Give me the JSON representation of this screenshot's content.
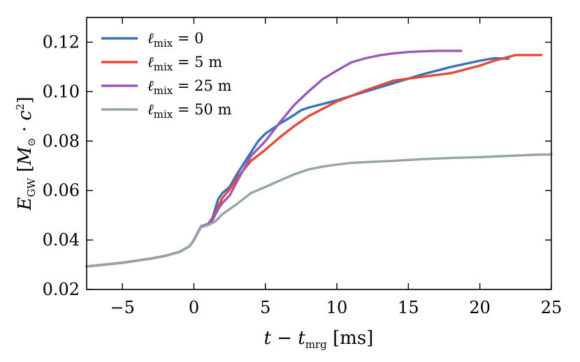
{
  "chart_data": {
    "type": "line",
    "title": "",
    "xlabel": "t − t_mrg [ms]",
    "ylabel": "E_GW [M_⊙ · c²]",
    "xlim": [
      -7.5,
      25
    ],
    "ylim": [
      0.02,
      0.13
    ],
    "xticks": [
      -5,
      0,
      5,
      10,
      15,
      20,
      25
    ],
    "yticks": [
      0.02,
      0.04,
      0.06,
      0.08,
      0.1,
      0.12
    ],
    "xtick_labels": [
      "−5",
      "0",
      "5",
      "10",
      "15",
      "20",
      "25"
    ],
    "ytick_labels": [
      "0.02",
      "0.04",
      "0.06",
      "0.08",
      "0.10",
      "0.12"
    ],
    "grid": false,
    "legend_position": "top-left",
    "series": [
      {
        "name": "ℓmix = 0",
        "legend_symbol": "ℓ",
        "legend_sub": "mix",
        "legend_value": " =   0",
        "color": "#3a72b7",
        "x": [
          -7.5,
          -5,
          -3,
          -2,
          -1,
          -0.3,
          0,
          0.5,
          1,
          1.3,
          1.7,
          2,
          2.5,
          3,
          4,
          4.5,
          5,
          6,
          7,
          7.5,
          8,
          9,
          10,
          12,
          14,
          16,
          18,
          20,
          21,
          22
        ],
        "y": [
          0.0293,
          0.0308,
          0.0325,
          0.0336,
          0.0352,
          0.0375,
          0.04,
          0.0455,
          0.0465,
          0.049,
          0.0565,
          0.059,
          0.0615,
          0.0665,
          0.0755,
          0.08,
          0.083,
          0.087,
          0.0905,
          0.0925,
          0.0935,
          0.095,
          0.0965,
          0.1,
          0.1035,
          0.107,
          0.11,
          0.1125,
          0.1135,
          0.1133
        ]
      },
      {
        "name": "ℓmix = 5 m",
        "legend_symbol": "ℓ",
        "legend_sub": "mix",
        "legend_value": " =   5 m",
        "color": "#e24a3b",
        "x": [
          -7.5,
          -5,
          -3,
          -2,
          -1,
          -0.3,
          0,
          0.5,
          1,
          1.3,
          1.7,
          2,
          2.5,
          3,
          4,
          5,
          6,
          7,
          8,
          10,
          12,
          14,
          16,
          18,
          20,
          21,
          22,
          22.5,
          23,
          24.3
        ],
        "y": [
          0.0293,
          0.0308,
          0.0325,
          0.0336,
          0.0352,
          0.0375,
          0.04,
          0.0455,
          0.0465,
          0.0485,
          0.0535,
          0.057,
          0.0605,
          0.065,
          0.072,
          0.0765,
          0.0815,
          0.086,
          0.09,
          0.096,
          0.1005,
          0.1045,
          0.106,
          0.1075,
          0.1105,
          0.1125,
          0.114,
          0.1148,
          0.1148,
          0.1148
        ]
      },
      {
        "name": "ℓmix = 25 m",
        "legend_symbol": "ℓ",
        "legend_sub": "mix",
        "legend_value": " = 25 m",
        "color": "#9b59b6",
        "x": [
          -7.5,
          -5,
          -3,
          -2,
          -1,
          -0.3,
          0,
          0.5,
          1,
          1.3,
          1.7,
          2,
          2.5,
          3,
          4,
          5,
          6,
          7,
          8,
          9,
          10,
          11,
          12,
          13,
          14,
          15,
          16,
          17,
          18,
          18.7
        ],
        "y": [
          0.0293,
          0.0308,
          0.0325,
          0.0336,
          0.0352,
          0.0375,
          0.04,
          0.0455,
          0.0465,
          0.048,
          0.0525,
          0.055,
          0.058,
          0.0635,
          0.074,
          0.08,
          0.0875,
          0.0945,
          0.1,
          0.105,
          0.1085,
          0.1118,
          0.1135,
          0.1147,
          0.1155,
          0.116,
          0.1163,
          0.1165,
          0.1165,
          0.1165
        ]
      },
      {
        "name": "ℓmix = 50 m",
        "legend_symbol": "ℓ",
        "legend_sub": "mix",
        "legend_value": " = 50 m",
        "color": "#95a5a6",
        "x": [
          -7.5,
          -5,
          -3,
          -2,
          -1,
          -0.3,
          0,
          0.5,
          1,
          1.5,
          2,
          3,
          4,
          5,
          6,
          7,
          8,
          9,
          10,
          11,
          12,
          14,
          16,
          18,
          20,
          22,
          24,
          25
        ],
        "y": [
          0.0293,
          0.0308,
          0.0325,
          0.0336,
          0.0352,
          0.0375,
          0.04,
          0.0452,
          0.046,
          0.0475,
          0.0505,
          0.0545,
          0.059,
          0.0615,
          0.064,
          0.0665,
          0.0685,
          0.0697,
          0.0705,
          0.0712,
          0.0715,
          0.072,
          0.0727,
          0.0732,
          0.0735,
          0.074,
          0.0745,
          0.0746
        ]
      }
    ]
  }
}
